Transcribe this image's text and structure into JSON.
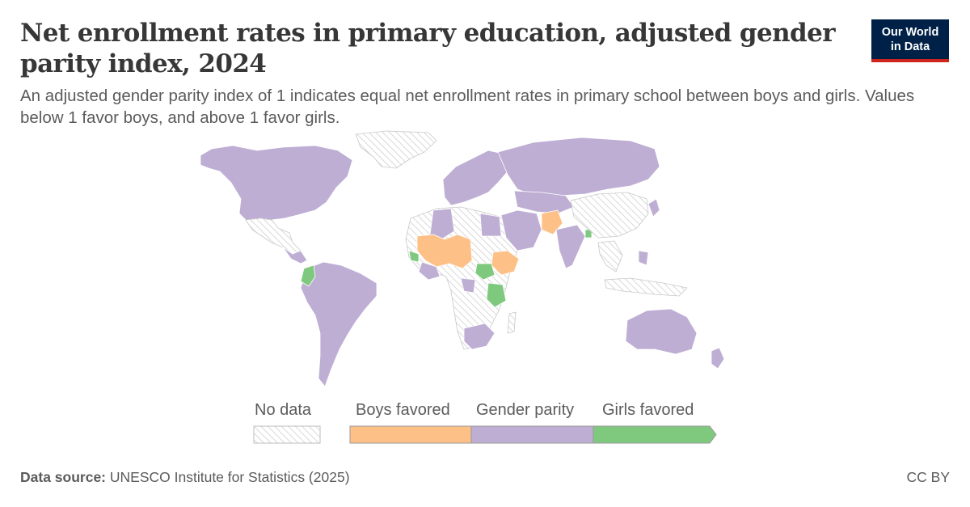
{
  "header": {
    "title": "Net enrollment rates in primary education, adjusted gender parity index, 2024",
    "subtitle": "An adjusted gender parity index of 1 indicates equal net enrollment rates in primary school between boys and girls. Values below 1 favor boys, and above 1 favor girls."
  },
  "logo": {
    "line1": "Our World",
    "line2": "in Data"
  },
  "legend": {
    "no_data": "No data",
    "items": [
      {
        "label": "Boys favored",
        "color": "#fdc086"
      },
      {
        "label": "Gender parity",
        "color": "#beaed4"
      },
      {
        "label": "Girls favored",
        "color": "#7fc97f"
      }
    ]
  },
  "colors": {
    "no_data_hatch": "#d0d0d0",
    "border": "#ffffff"
  },
  "footer": {
    "source_label": "Data source:",
    "source_text": "UNESCO Institute for Statistics (2025)",
    "license": "CC BY"
  }
}
